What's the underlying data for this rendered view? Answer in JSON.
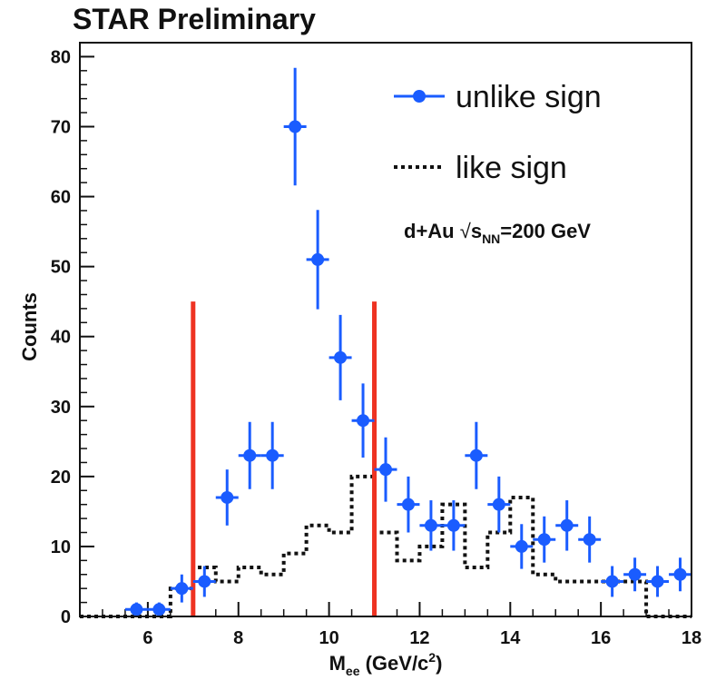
{
  "chart_data": {
    "type": "scatter",
    "title": "STAR Preliminary",
    "xlabel": {
      "main": "M",
      "sub": "ee",
      "units_pre": " (GeV/c",
      "units_sup": "2",
      "units_post": ")"
    },
    "ylabel": "Counts",
    "xlim": [
      4.5,
      18
    ],
    "ylim": [
      0,
      82
    ],
    "xticks": [
      6,
      8,
      10,
      12,
      14,
      16,
      18
    ],
    "yticks": [
      0,
      10,
      20,
      30,
      40,
      50,
      60,
      70,
      80
    ],
    "annotation": {
      "system": "d+Au ",
      "root": "√",
      "s": "s",
      "sub": "NN",
      "energy": "=200 GeV"
    },
    "colors": {
      "unlike": "#1a5cff",
      "like": "#111111",
      "cut": "#ee3322"
    },
    "series": [
      {
        "name": "unlike sign",
        "style": "points-with-errors",
        "x": [
          5.75,
          6.25,
          6.75,
          7.25,
          7.75,
          8.25,
          8.75,
          9.25,
          9.75,
          10.25,
          10.75,
          11.25,
          11.75,
          12.25,
          12.75,
          13.25,
          13.75,
          14.25,
          14.75,
          15.25,
          15.75,
          16.25,
          16.75,
          17.25,
          17.75
        ],
        "y": [
          1,
          1,
          4,
          5,
          17,
          23,
          23,
          70,
          51,
          37,
          28,
          21,
          16,
          13,
          13,
          23,
          16,
          10,
          11,
          13,
          11,
          5,
          6,
          5,
          6
        ],
        "yerr_low": [
          1,
          1,
          2,
          2.2,
          4,
          4.8,
          4.8,
          8.4,
          7.1,
          6.1,
          5.3,
          4.6,
          4,
          3.6,
          3.6,
          4.8,
          4,
          3.2,
          3.3,
          3.6,
          3.3,
          2.2,
          2.4,
          2.2,
          2.4
        ],
        "yerr_high": [
          1,
          1,
          2,
          2.2,
          4,
          4.8,
          4.8,
          8.4,
          7.1,
          6.1,
          5.3,
          4.6,
          4,
          3.6,
          3.6,
          4.8,
          4,
          3.2,
          3.3,
          3.6,
          3.3,
          2.2,
          2.4,
          2.2,
          2.4
        ],
        "xerr": 0.25
      },
      {
        "name": "like sign",
        "style": "dotted-step",
        "bin_edges": [
          4.5,
          5.0,
          5.5,
          6.0,
          6.5,
          7.0,
          7.5,
          8.0,
          8.5,
          9.0,
          9.5,
          10.0,
          10.5,
          11.0,
          11.5,
          12.0,
          12.5,
          13.0,
          13.5,
          14.0,
          14.5,
          15.0,
          15.5,
          16.0,
          16.5,
          17.0,
          17.5,
          18.0
        ],
        "values": [
          0,
          0,
          0,
          0,
          4,
          7,
          5,
          7,
          6,
          9,
          13,
          12,
          20,
          12,
          8,
          10,
          16,
          7,
          12,
          17,
          6,
          5,
          5,
          5,
          5,
          0,
          0
        ]
      }
    ],
    "vertical_lines": [
      {
        "x": 7.0,
        "ymax": 45
      },
      {
        "x": 11.0,
        "ymax": 45
      }
    ]
  }
}
